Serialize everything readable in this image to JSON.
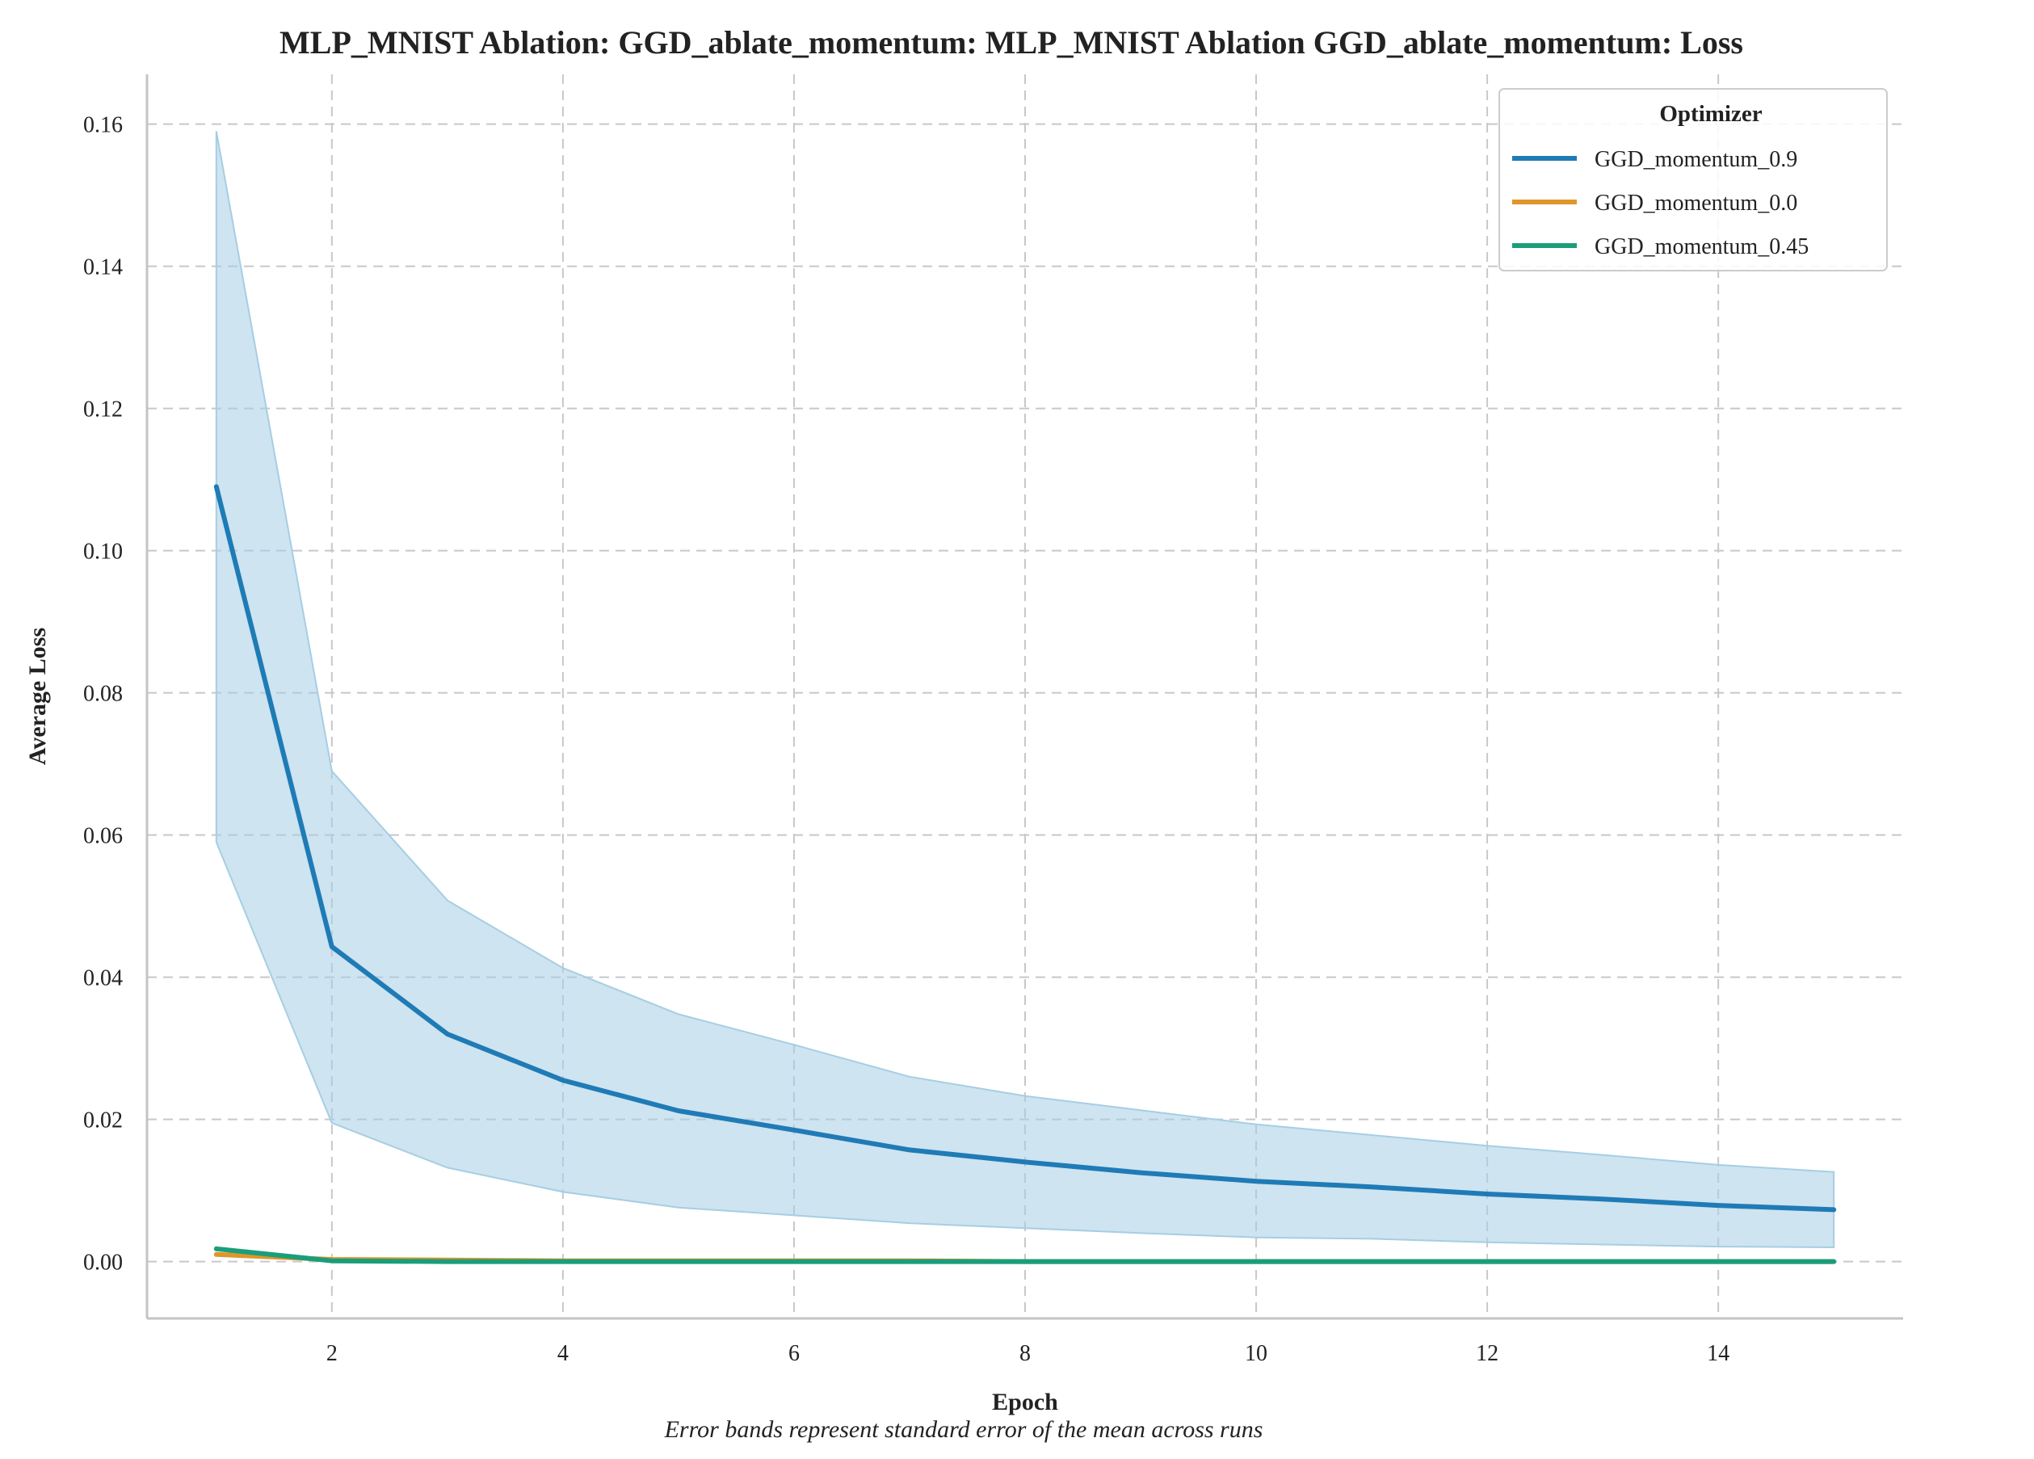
{
  "chart_data": {
    "type": "line",
    "title": "MLP_MNIST Ablation: GGD_ablate_momentum: MLP_MNIST Ablation GGD_ablate_momentum: Loss",
    "xlabel": "Epoch",
    "ylabel": "Average Loss",
    "caption": "Error bands represent standard error of the mean across runs",
    "xlim": [
      0.4,
      15.6
    ],
    "ylim": [
      -0.008,
      0.167
    ],
    "xticks": [
      2,
      4,
      6,
      8,
      10,
      12,
      14
    ],
    "yticks": [
      0.0,
      0.02,
      0.04,
      0.06,
      0.08,
      0.1,
      0.12,
      0.14,
      0.16
    ],
    "ytick_labels": [
      "0.00",
      "0.02",
      "0.04",
      "0.06",
      "0.08",
      "0.10",
      "0.12",
      "0.14",
      "0.16"
    ],
    "grid": true,
    "legend": {
      "title": "Optimizer",
      "placement": "top-right"
    },
    "x": [
      1,
      2,
      3,
      4,
      5,
      6,
      7,
      8,
      9,
      10,
      11,
      12,
      13,
      14,
      15
    ],
    "series": [
      {
        "name": "GGD_momentum_0.9",
        "color": "#1f7bb6",
        "values": [
          0.109,
          0.0443,
          0.032,
          0.0255,
          0.0212,
          0.0185,
          0.0157,
          0.014,
          0.0125,
          0.0113,
          0.0105,
          0.0095,
          0.0088,
          0.0079,
          0.0073
        ],
        "band_upper": [
          0.159,
          0.069,
          0.0508,
          0.0413,
          0.0348,
          0.0305,
          0.026,
          0.0233,
          0.0213,
          0.0193,
          0.0178,
          0.0163,
          0.015,
          0.0136,
          0.0126
        ],
        "band_lower": [
          0.059,
          0.0195,
          0.0132,
          0.0098,
          0.0076,
          0.0065,
          0.0054,
          0.0047,
          0.004,
          0.0034,
          0.0032,
          0.0027,
          0.0024,
          0.0021,
          0.002
        ],
        "band_color": "#a6cee3"
      },
      {
        "name": "GGD_momentum_0.0",
        "color": "#df962a",
        "values": [
          0.001,
          0.0003,
          0.0002,
          0.0001,
          0.0001,
          0.0001,
          0.0001,
          0.0,
          0.0,
          0.0,
          0.0,
          0.0,
          0.0,
          0.0,
          0.0
        ]
      },
      {
        "name": "GGD_momentum_0.45",
        "color": "#1a9e7a",
        "values": [
          0.0018,
          0.0001,
          0.0,
          0.0,
          0.0,
          0.0,
          0.0,
          0.0,
          0.0,
          0.0,
          0.0,
          0.0,
          0.0,
          0.0,
          0.0
        ]
      }
    ]
  }
}
